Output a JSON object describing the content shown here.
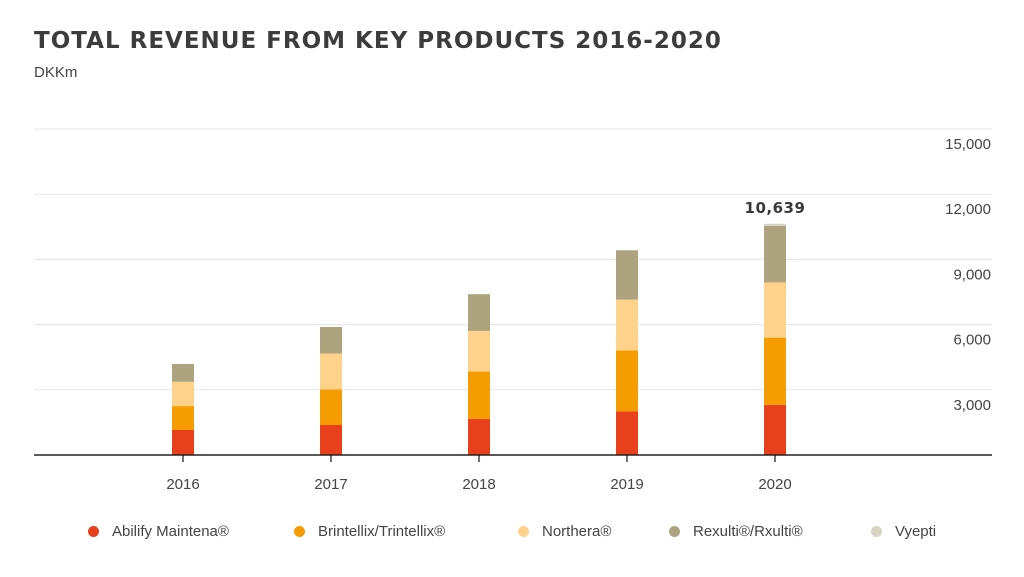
{
  "title": "TOTAL REVENUE FROM KEY PRODUCTS 2016-2020",
  "subtitle": "DKKm",
  "chart_data": {
    "type": "bar",
    "stacked": true,
    "categories": [
      "2016",
      "2017",
      "2018",
      "2019",
      "2020"
    ],
    "series": [
      {
        "name": "Abilify Maintena®",
        "color": "#e8401c",
        "values": [
          1150,
          1380,
          1660,
          2010,
          2310
        ]
      },
      {
        "name": "Brintellix/Trintellix®",
        "color": "#f59c00",
        "values": [
          1100,
          1640,
          2180,
          2800,
          3090
        ]
      },
      {
        "name": "Northera®",
        "color": "#ffd28c",
        "values": [
          1120,
          1650,
          1870,
          2340,
          2540
        ]
      },
      {
        "name": "Rexulti®/Rxulti®",
        "color": "#ada47f",
        "values": [
          820,
          1220,
          1690,
          2270,
          2600
        ]
      },
      {
        "name": "Vyepti",
        "color": "#d6d2c4",
        "values": [
          0,
          0,
          0,
          0,
          99
        ]
      }
    ],
    "annotations": [
      {
        "category": "2020",
        "text": "10,639"
      }
    ],
    "yticks": [
      3000,
      6000,
      9000,
      12000,
      15000
    ],
    "ytick_labels": [
      "3,000",
      "6,000",
      "9,000",
      "12,000",
      "15,000"
    ],
    "ylim": [
      0,
      15000
    ],
    "grid": true,
    "y_axis_side": "right",
    "legend_position": "bottom"
  }
}
